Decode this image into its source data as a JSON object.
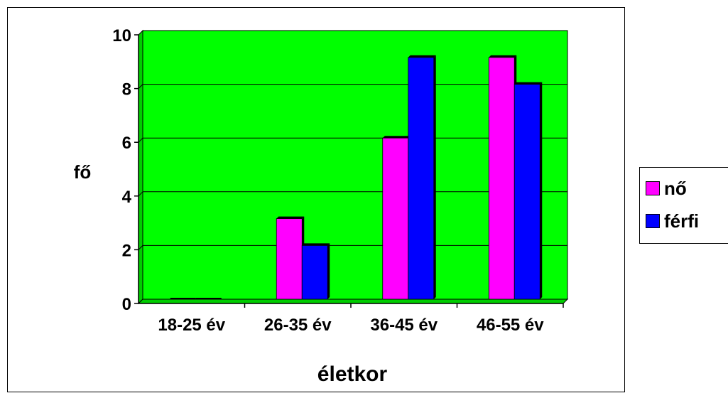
{
  "chart_data": {
    "type": "bar",
    "categories": [
      "18-25 év",
      "26-35 év",
      "36-45 év",
      "46-55 év"
    ],
    "series": [
      {
        "name": "nő",
        "values": [
          0,
          3,
          6,
          9
        ],
        "color": "#ff00ff"
      },
      {
        "name": "férfi",
        "values": [
          0,
          2,
          9,
          8
        ],
        "color": "#0000ff"
      }
    ],
    "xlabel": "életkor",
    "ylabel": "fő",
    "ylim": [
      0,
      10
    ],
    "yticks": [
      "0",
      "2",
      "4",
      "6",
      "8",
      "10"
    ],
    "grid": true,
    "plot_background": "#00ff00",
    "legend_position": "right"
  }
}
